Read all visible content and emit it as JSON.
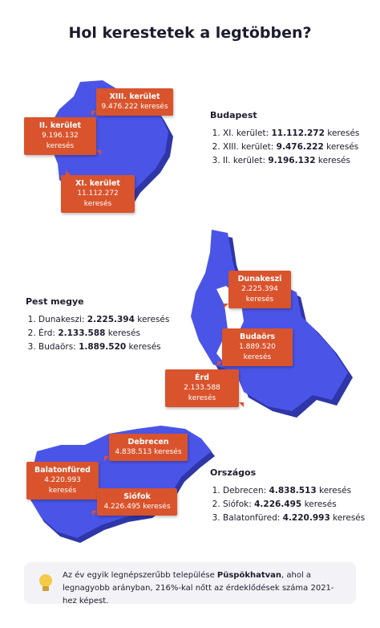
{
  "title": "Hol kerestetek a legtöbben?",
  "sections": [
    {
      "heading": "Budapest",
      "items": [
        {
          "label": "XI. kerület:",
          "value": "11.112.272",
          "unit": "keresés"
        },
        {
          "label": "XIII. kerület:",
          "value": "9.476.222",
          "unit": "keresés"
        },
        {
          "label": "II. kerület:",
          "value": "9.196.132",
          "unit": "keresés"
        }
      ],
      "callouts": [
        {
          "name": "XIII. kerület",
          "text": "9.476.222 keresés"
        },
        {
          "name": "II. kerület",
          "text": "9.196.132 keresés"
        },
        {
          "name": "XI. kerület",
          "text": "11.112.272 keresés"
        }
      ]
    },
    {
      "heading": "Pest megye",
      "items": [
        {
          "label": "Dunakeszi:",
          "value": "2.225.394",
          "unit": "keresés"
        },
        {
          "label": "Érd:",
          "value": "2.133.588",
          "unit": "keresés"
        },
        {
          "label": "Budaörs:",
          "value": "1.889.520",
          "unit": "keresés"
        }
      ],
      "callouts": [
        {
          "name": "Dunakeszi",
          "text": "2.225.394 keresés"
        },
        {
          "name": "Budaörs",
          "text": "1.889.520 keresés"
        },
        {
          "name": "Érd",
          "text": "2.133.588 keresés"
        }
      ]
    },
    {
      "heading": "Országos",
      "items": [
        {
          "label": "Debrecen:",
          "value": "4.838.513",
          "unit": "keresés"
        },
        {
          "label": "Siófok:",
          "value": "4.226.495",
          "unit": "keresés"
        },
        {
          "label": "Balatonfüred:",
          "value": "4.220.993",
          "unit": "keresés"
        }
      ],
      "callouts": [
        {
          "name": "Debrecen",
          "text": "4.838.513 keresés"
        },
        {
          "name": "Balatonfüred",
          "text": "4.220.993 keresés"
        },
        {
          "name": "Siófok",
          "text": "4.226.495 keresés"
        }
      ]
    }
  ],
  "note": {
    "before": "Az év egyik legnépszerűbb települése",
    "highlight": "Püspökhatvan",
    "after": ", ahol a legnagyobb arányban, 216%-kal nőtt az érdeklődések száma 2021-hez képest."
  }
}
